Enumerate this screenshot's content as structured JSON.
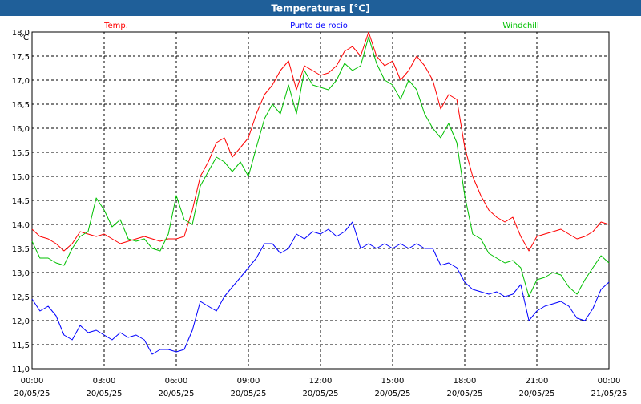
{
  "colors": {
    "title_bar": "#1f5f99",
    "title_text": "#ffffff",
    "background": "#ffffff",
    "grid": "#000000",
    "temp": "#ff0000",
    "dew": "#0000ff",
    "windchill": "#00c000"
  },
  "chart_data": {
    "type": "line",
    "title": "Temperaturas [°C]",
    "ylabel": "°C",
    "xlabel": "",
    "ylim": [
      11.0,
      18.0
    ],
    "xlim": [
      0,
      24
    ],
    "grid": true,
    "legend_placement": "top",
    "y_ticks": [
      "11,0",
      "11,5",
      "12,0",
      "12,5",
      "13,0",
      "13,5",
      "14,0",
      "14,5",
      "15,0",
      "15,5",
      "16,0",
      "16,5",
      "17,0",
      "17,5",
      "18,0"
    ],
    "x_ticks": [
      {
        "time": "00:00",
        "date": "20/05/25"
      },
      {
        "time": "03:00",
        "date": "20/05/25"
      },
      {
        "time": "06:00",
        "date": "20/05/25"
      },
      {
        "time": "09:00",
        "date": "20/05/25"
      },
      {
        "time": "12:00",
        "date": "20/05/25"
      },
      {
        "time": "15:00",
        "date": "20/05/25"
      },
      {
        "time": "18:00",
        "date": "20/05/25"
      },
      {
        "time": "21:00",
        "date": "20/05/25"
      },
      {
        "time": "00:00",
        "date": "21/05/25"
      }
    ],
    "series": [
      {
        "name": "Temp.",
        "color": "#ff0000",
        "x": [
          0,
          0.33,
          0.67,
          1,
          1.33,
          1.67,
          2,
          2.33,
          2.67,
          3,
          3.33,
          3.67,
          4,
          4.33,
          4.67,
          5,
          5.33,
          5.67,
          6,
          6.33,
          6.67,
          7,
          7.33,
          7.67,
          8,
          8.33,
          8.67,
          9,
          9.33,
          9.67,
          10,
          10.33,
          10.67,
          11,
          11.33,
          11.67,
          12,
          12.33,
          12.67,
          13,
          13.33,
          13.67,
          14,
          14.33,
          14.67,
          15,
          15.33,
          15.67,
          16,
          16.33,
          16.67,
          17,
          17.33,
          17.67,
          18,
          18.33,
          18.67,
          19,
          19.33,
          19.67,
          20,
          20.33,
          20.67,
          21,
          21.33,
          21.67,
          22,
          22.33,
          22.67,
          23,
          23.33,
          23.67,
          24
        ],
        "values": [
          13.9,
          13.75,
          13.7,
          13.6,
          13.45,
          13.6,
          13.85,
          13.8,
          13.75,
          13.8,
          13.7,
          13.6,
          13.65,
          13.7,
          13.75,
          13.7,
          13.65,
          13.7,
          13.7,
          13.75,
          14.3,
          15.0,
          15.3,
          15.7,
          15.8,
          15.4,
          15.6,
          15.8,
          16.3,
          16.7,
          16.9,
          17.2,
          17.4,
          16.8,
          17.3,
          17.2,
          17.1,
          17.15,
          17.3,
          17.6,
          17.7,
          17.5,
          18.0,
          17.5,
          17.3,
          17.4,
          17.0,
          17.2,
          17.5,
          17.3,
          17.0,
          16.4,
          16.7,
          16.6,
          15.6,
          15.0,
          14.6,
          14.3,
          14.15,
          14.05,
          14.15,
          13.75,
          13.45,
          13.75,
          13.8,
          13.85,
          13.9,
          13.8,
          13.7,
          13.75,
          13.85,
          14.05,
          14.0
        ]
      },
      {
        "name": "Punto de rocío",
        "color": "#0000ff",
        "x": [
          0,
          0.33,
          0.67,
          1,
          1.33,
          1.67,
          2,
          2.33,
          2.67,
          3,
          3.33,
          3.67,
          4,
          4.33,
          4.67,
          5,
          5.33,
          5.67,
          6,
          6.33,
          6.67,
          7,
          7.33,
          7.67,
          8,
          8.33,
          8.67,
          9,
          9.33,
          9.67,
          10,
          10.33,
          10.67,
          11,
          11.33,
          11.67,
          12,
          12.33,
          12.67,
          13,
          13.33,
          13.67,
          14,
          14.33,
          14.67,
          15,
          15.33,
          15.67,
          16,
          16.33,
          16.67,
          17,
          17.33,
          17.67,
          18,
          18.33,
          18.67,
          19,
          19.33,
          19.67,
          20,
          20.33,
          20.67,
          21,
          21.33,
          21.67,
          22,
          22.33,
          22.67,
          23,
          23.33,
          23.67,
          24
        ],
        "values": [
          12.45,
          12.2,
          12.3,
          12.1,
          11.7,
          11.6,
          11.9,
          11.75,
          11.8,
          11.7,
          11.6,
          11.75,
          11.65,
          11.7,
          11.6,
          11.3,
          11.4,
          11.4,
          11.35,
          11.4,
          11.8,
          12.4,
          12.3,
          12.2,
          12.5,
          12.7,
          12.9,
          13.1,
          13.3,
          13.6,
          13.6,
          13.4,
          13.5,
          13.8,
          13.7,
          13.85,
          13.8,
          13.9,
          13.75,
          13.85,
          14.05,
          13.5,
          13.6,
          13.5,
          13.6,
          13.5,
          13.6,
          13.5,
          13.6,
          13.5,
          13.5,
          13.15,
          13.2,
          13.1,
          12.8,
          12.65,
          12.6,
          12.55,
          12.6,
          12.5,
          12.55,
          12.75,
          12.0,
          12.2,
          12.3,
          12.35,
          12.4,
          12.3,
          12.05,
          12.0,
          12.25,
          12.65,
          12.8
        ]
      },
      {
        "name": "Windchill",
        "color": "#00c000",
        "x": [
          0,
          0.33,
          0.67,
          1,
          1.33,
          1.67,
          2,
          2.33,
          2.67,
          3,
          3.33,
          3.67,
          4,
          4.33,
          4.67,
          5,
          5.33,
          5.67,
          6,
          6.33,
          6.67,
          7,
          7.33,
          7.67,
          8,
          8.33,
          8.67,
          9,
          9.33,
          9.67,
          10,
          10.33,
          10.67,
          11,
          11.33,
          11.67,
          12,
          12.33,
          12.67,
          13,
          13.33,
          13.67,
          14,
          14.33,
          14.67,
          15,
          15.33,
          15.67,
          16,
          16.33,
          16.67,
          17,
          17.33,
          17.67,
          18,
          18.33,
          18.67,
          19,
          19.33,
          19.67,
          20,
          20.33,
          20.67,
          21,
          21.33,
          21.67,
          22,
          22.33,
          22.67,
          23,
          23.33,
          23.67,
          24
        ],
        "values": [
          13.65,
          13.3,
          13.3,
          13.2,
          13.15,
          13.5,
          13.75,
          13.85,
          14.55,
          14.3,
          13.95,
          14.1,
          13.7,
          13.65,
          13.7,
          13.5,
          13.45,
          13.8,
          14.6,
          14.1,
          14.0,
          14.8,
          15.1,
          15.4,
          15.3,
          15.1,
          15.3,
          15.0,
          15.6,
          16.2,
          16.5,
          16.3,
          16.9,
          16.3,
          17.2,
          16.9,
          16.85,
          16.8,
          17.0,
          17.35,
          17.2,
          17.3,
          17.9,
          17.35,
          17.0,
          16.9,
          16.6,
          17.0,
          16.8,
          16.3,
          16.0,
          15.8,
          16.1,
          15.7,
          14.6,
          13.8,
          13.7,
          13.4,
          13.3,
          13.2,
          13.25,
          13.1,
          12.5,
          12.85,
          12.9,
          13.0,
          12.95,
          12.7,
          12.55,
          12.85,
          13.1,
          13.35,
          13.2
        ]
      }
    ]
  }
}
